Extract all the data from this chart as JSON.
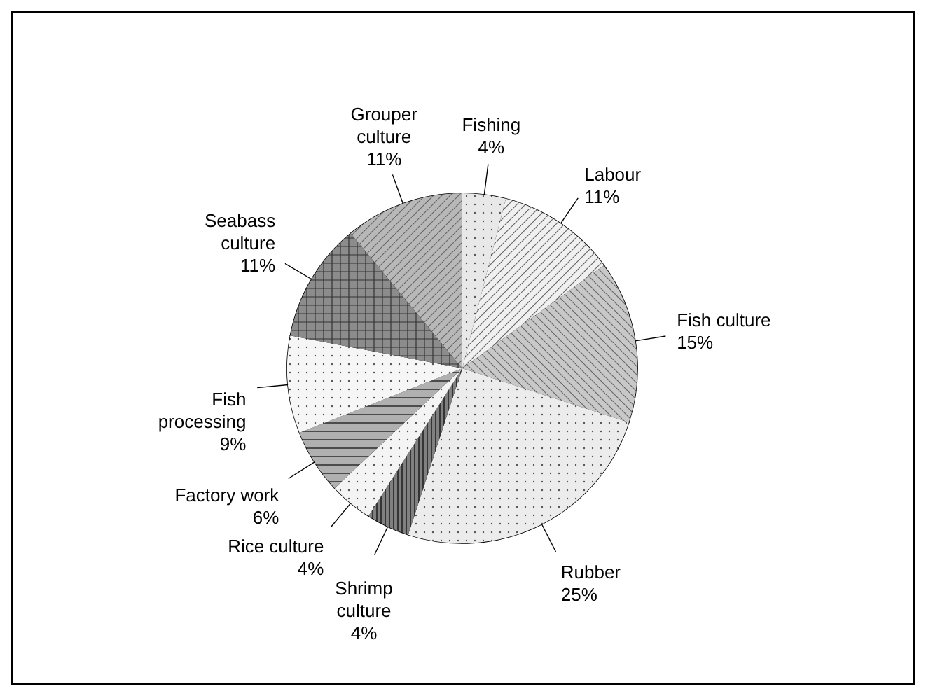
{
  "chart_data": {
    "type": "pie",
    "categories": [
      "Fishing",
      "Labour",
      "Fish culture",
      "Rubber",
      "Shrimp culture",
      "Rice culture",
      "Factory work",
      "Fish processing",
      "Seabass culture",
      "Grouper culture"
    ],
    "values": [
      4,
      11,
      15,
      25,
      4,
      4,
      6,
      9,
      11,
      11
    ],
    "value_labels": [
      "4%",
      "11%",
      "15%",
      "25%",
      "4%",
      "4%",
      "6%",
      "9%",
      "11%",
      "11%"
    ],
    "colors": [
      "#e8e8e8",
      "#f0f0f0",
      "#c8c8c8",
      "#ececec",
      "#808080",
      "#f4f4f4",
      "#b0b0b0",
      "#f6f6f6",
      "#8c8c8c",
      "#b8b8b8"
    ]
  }
}
